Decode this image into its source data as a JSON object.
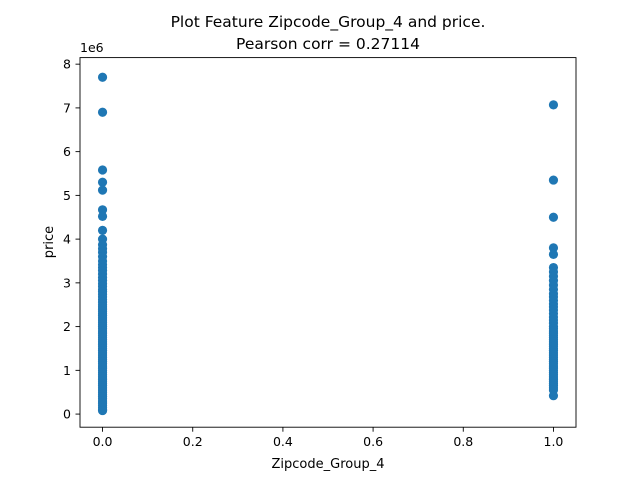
{
  "chart_data": {
    "type": "scatter",
    "title": "Plot Feature Zipcode_Group_4 and price.",
    "subtitle": "Pearson corr = 0.27114",
    "xlabel": "Zipcode_Group_4",
    "ylabel": "price",
    "y_offset_label": "1e6",
    "xlim": [
      -0.05,
      1.05
    ],
    "ylim": [
      -0.3,
      8.15
    ],
    "x_ticks": [
      0.0,
      0.2,
      0.4,
      0.6,
      0.8,
      1.0
    ],
    "x_tick_labels": [
      "0.0",
      "0.2",
      "0.4",
      "0.6",
      "0.8",
      "1.0"
    ],
    "y_ticks": [
      0,
      1,
      2,
      3,
      4,
      5,
      6,
      7,
      8
    ],
    "y_tick_labels": [
      "0",
      "1",
      "2",
      "3",
      "4",
      "5",
      "6",
      "7",
      "8"
    ],
    "grid": false,
    "legend": "none",
    "marker_color": "#1f77b4",
    "series": [
      {
        "x": 0,
        "y": [
          7.7,
          6.9,
          5.58,
          5.3,
          5.12,
          4.67,
          4.52,
          4.2,
          4.0,
          3.87,
          3.78,
          3.7,
          3.6,
          3.5,
          3.42,
          3.35,
          3.28,
          3.2,
          3.12,
          3.05,
          2.98,
          2.92,
          2.85,
          2.8,
          2.74,
          2.68,
          2.62,
          2.56,
          2.5,
          2.45,
          2.4,
          2.35,
          2.3,
          2.25,
          2.2,
          2.15,
          2.1,
          2.05,
          2.0,
          1.95,
          1.9,
          1.85,
          1.8,
          1.75,
          1.7,
          1.65,
          1.6,
          1.55,
          1.5,
          1.45,
          1.4,
          1.35,
          1.3,
          1.25,
          1.2,
          1.15,
          1.1,
          1.05,
          1.0,
          0.95,
          0.9,
          0.85,
          0.8,
          0.75,
          0.7,
          0.65,
          0.6,
          0.55,
          0.5,
          0.45,
          0.4,
          0.35,
          0.3,
          0.25,
          0.2,
          0.15,
          0.1,
          0.08
        ]
      },
      {
        "x": 1,
        "y": [
          7.07,
          5.35,
          4.5,
          3.8,
          3.65,
          3.35,
          3.25,
          3.15,
          3.05,
          2.95,
          2.85,
          2.75,
          2.68,
          2.6,
          2.52,
          2.45,
          2.38,
          2.3,
          2.22,
          2.15,
          2.08,
          2.0,
          1.95,
          1.9,
          1.85,
          1.8,
          1.75,
          1.7,
          1.65,
          1.6,
          1.55,
          1.5,
          1.45,
          1.4,
          1.35,
          1.3,
          1.25,
          1.2,
          1.15,
          1.1,
          1.05,
          1.0,
          0.95,
          0.9,
          0.85,
          0.8,
          0.75,
          0.7,
          0.65,
          0.6,
          0.55,
          0.42
        ]
      }
    ]
  }
}
